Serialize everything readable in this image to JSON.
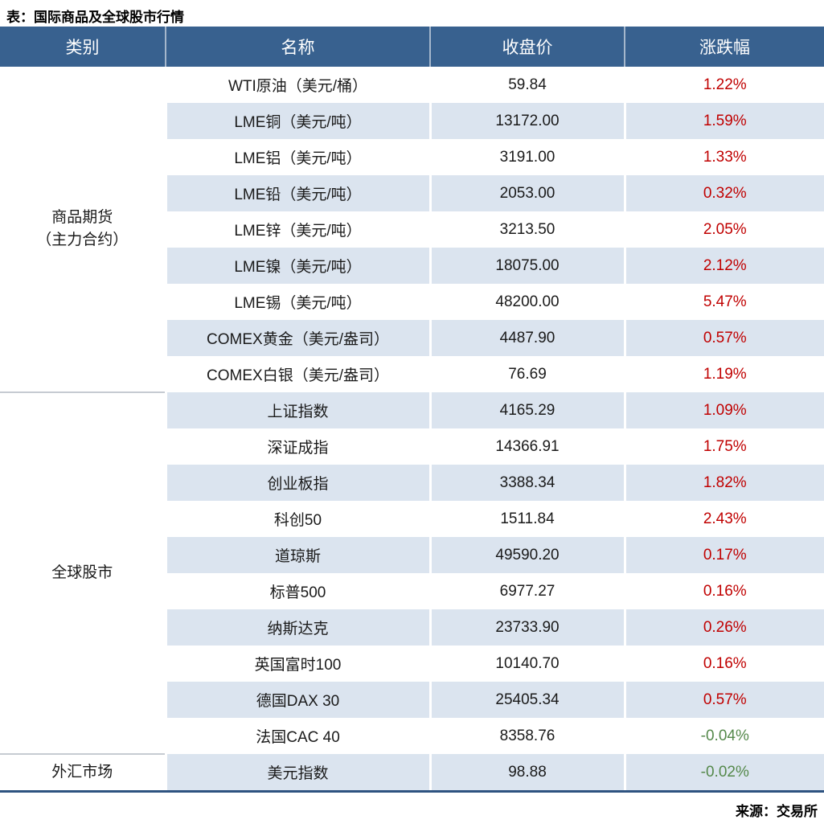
{
  "title": "表：国际商品及全球股市行情",
  "source": "来源：交易所",
  "colors": {
    "header_bg": "#38618F",
    "header_text": "#FFFFFF",
    "row_stripe": "#DBE4EF",
    "row_white": "#FFFFFF",
    "up_red": "#C00000",
    "down_green": "#55894B",
    "bottom_border": "#2E5380",
    "section_divider": "#C6CBD2"
  },
  "headers": {
    "category": "类别",
    "name": "名称",
    "close": "收盘价",
    "change": "涨跌幅"
  },
  "categories": {
    "futures": {
      "line1": "商品期货",
      "line2": "（主力合约）"
    },
    "stocks": {
      "label": "全球股市"
    },
    "forex": {
      "label": "外汇市场"
    }
  },
  "rows": [
    {
      "name": "WTI原油（美元/桶）",
      "close": "59.84",
      "change": "1.22%",
      "trend": "up"
    },
    {
      "name": "LME铜（美元/吨）",
      "close": "13172.00",
      "change": "1.59%",
      "trend": "up"
    },
    {
      "name": "LME铝（美元/吨）",
      "close": "3191.00",
      "change": "1.33%",
      "trend": "up"
    },
    {
      "name": "LME铅（美元/吨）",
      "close": "2053.00",
      "change": "0.32%",
      "trend": "up"
    },
    {
      "name": "LME锌（美元/吨）",
      "close": "3213.50",
      "change": "2.05%",
      "trend": "up"
    },
    {
      "name": "LME镍（美元/吨）",
      "close": "18075.00",
      "change": "2.12%",
      "trend": "up"
    },
    {
      "name": "LME锡（美元/吨）",
      "close": "48200.00",
      "change": "5.47%",
      "trend": "up"
    },
    {
      "name": "COMEX黄金（美元/盎司）",
      "close": "4487.90",
      "change": "0.57%",
      "trend": "up"
    },
    {
      "name": "COMEX白银（美元/盎司）",
      "close": "76.69",
      "change": "1.19%",
      "trend": "up"
    },
    {
      "name": "上证指数",
      "close": "4165.29",
      "change": "1.09%",
      "trend": "up"
    },
    {
      "name": "深证成指",
      "close": "14366.91",
      "change": "1.75%",
      "trend": "up"
    },
    {
      "name": "创业板指",
      "close": "3388.34",
      "change": "1.82%",
      "trend": "up"
    },
    {
      "name": "科创50",
      "close": "1511.84",
      "change": "2.43%",
      "trend": "up"
    },
    {
      "name": "道琼斯",
      "close": "49590.20",
      "change": "0.17%",
      "trend": "up"
    },
    {
      "name": "标普500",
      "close": "6977.27",
      "change": "0.16%",
      "trend": "up"
    },
    {
      "name": "纳斯达克",
      "close": "23733.90",
      "change": "0.26%",
      "trend": "up"
    },
    {
      "name": "英国富时100",
      "close": "10140.70",
      "change": "0.16%",
      "trend": "up"
    },
    {
      "name": "德国DAX 30",
      "close": "25405.34",
      "change": "0.57%",
      "trend": "up"
    },
    {
      "name": "法国CAC 40",
      "close": "8358.76",
      "change": "-0.04%",
      "trend": "down"
    },
    {
      "name": "美元指数",
      "close": "98.88",
      "change": "-0.02%",
      "trend": "down"
    }
  ],
  "chart_data": {
    "type": "table",
    "title": "表：国际商品及全球股市行情",
    "source": "来源：交易所",
    "columns": [
      "类别",
      "名称",
      "收盘价",
      "涨跌幅"
    ],
    "groups": [
      {
        "category": "商品期货（主力合约）",
        "rows": [
          [
            "WTI原油（美元/桶）",
            59.84,
            "1.22%"
          ],
          [
            "LME铜（美元/吨）",
            13172.0,
            "1.59%"
          ],
          [
            "LME铝（美元/吨）",
            3191.0,
            "1.33%"
          ],
          [
            "LME铅（美元/吨）",
            2053.0,
            "0.32%"
          ],
          [
            "LME锌（美元/吨）",
            3213.5,
            "2.05%"
          ],
          [
            "LME镍（美元/吨）",
            18075.0,
            "2.12%"
          ],
          [
            "LME锡（美元/吨）",
            48200.0,
            "5.47%"
          ],
          [
            "COMEX黄金（美元/盎司）",
            4487.9,
            "0.57%"
          ],
          [
            "COMEX白银（美元/盎司）",
            76.69,
            "1.19%"
          ]
        ]
      },
      {
        "category": "全球股市",
        "rows": [
          [
            "上证指数",
            4165.29,
            "1.09%"
          ],
          [
            "深证成指",
            14366.91,
            "1.75%"
          ],
          [
            "创业板指",
            3388.34,
            "1.82%"
          ],
          [
            "科创50",
            1511.84,
            "2.43%"
          ],
          [
            "道琼斯",
            49590.2,
            "0.17%"
          ],
          [
            "标普500",
            6977.27,
            "0.16%"
          ],
          [
            "纳斯达克",
            23733.9,
            "0.26%"
          ],
          [
            "英国富时100",
            10140.7,
            "0.16%"
          ],
          [
            "德国DAX 30",
            25405.34,
            "0.57%"
          ],
          [
            "法国CAC 40",
            8358.76,
            "-0.04%"
          ]
        ]
      },
      {
        "category": "外汇市场",
        "rows": [
          [
            "美元指数",
            98.88,
            "-0.02%"
          ]
        ]
      }
    ]
  }
}
